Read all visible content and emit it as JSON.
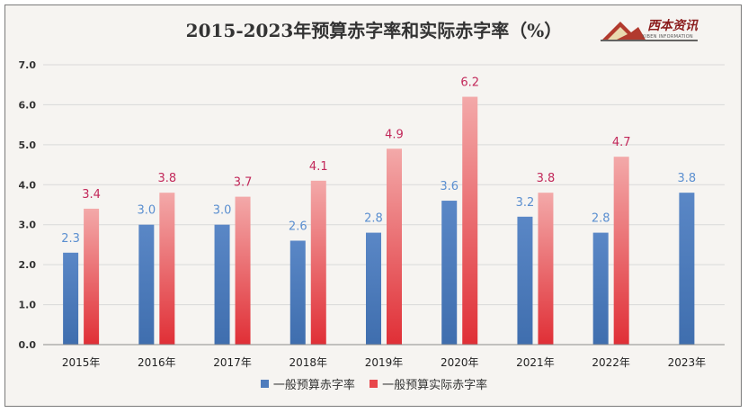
{
  "chart_data": {
    "type": "bar",
    "title": "2015-2023年预算赤字率和实际赤字率（%）",
    "categories": [
      "2015年",
      "2016年",
      "2017年",
      "2018年",
      "2019年",
      "2020年",
      "2021年",
      "2022年",
      "2023年"
    ],
    "series": [
      {
        "name": "一般预算赤字率",
        "values": [
          2.3,
          3.0,
          3.0,
          2.6,
          2.8,
          3.6,
          3.2,
          2.8,
          3.8
        ],
        "labels": [
          "2.3",
          "3.0",
          "3.0",
          "2.6",
          "2.8",
          "3.6",
          "3.2",
          "2.8",
          "3.8"
        ],
        "color": "#4f7dbd",
        "label_color": "#5b8fd0"
      },
      {
        "name": "一般预算实际赤字率",
        "values": [
          3.4,
          3.8,
          3.7,
          4.1,
          4.9,
          6.2,
          3.8,
          4.7,
          null
        ],
        "labels": [
          "3.4",
          "3.8",
          "3.7",
          "4.1",
          "4.9",
          "6.2",
          "3.8",
          "4.7",
          ""
        ],
        "color": "#e8474c",
        "label_color": "#c2285a"
      }
    ],
    "y_ticks": [
      "0.0",
      "1.0",
      "2.0",
      "3.0",
      "4.0",
      "5.0",
      "6.0",
      "7.0"
    ],
    "ylim": [
      0,
      7
    ],
    "grid": true,
    "legend_position": "bottom"
  },
  "logo": {
    "text": "西本资讯",
    "subtext": "XIBEN INFORMATION"
  }
}
